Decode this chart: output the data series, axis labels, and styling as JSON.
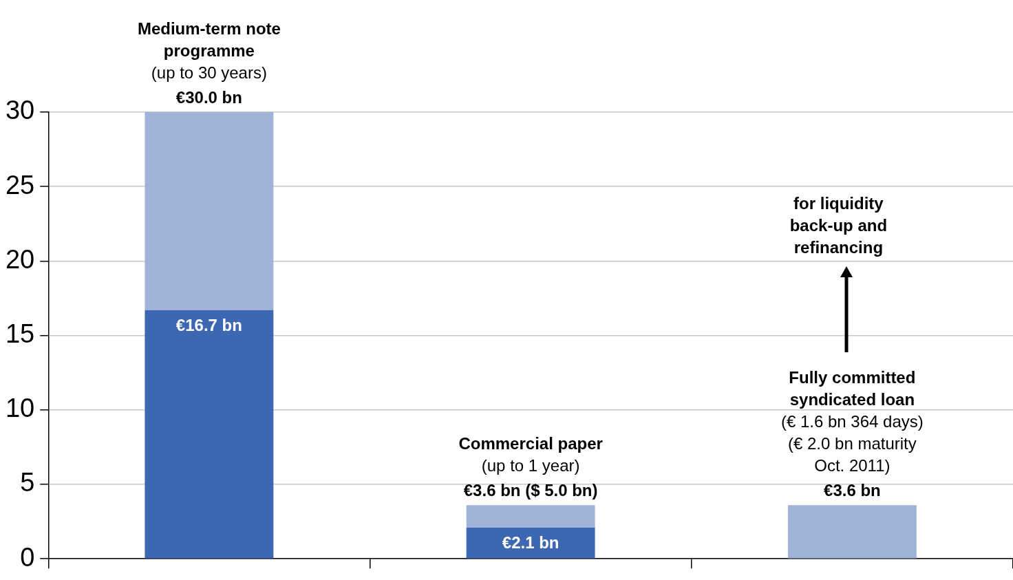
{
  "chart_data": {
    "type": "bar",
    "stacked": true,
    "categories": [
      null,
      null,
      null
    ],
    "series": [
      {
        "color": "#3e67b1",
        "values": [
          16.7,
          2.1,
          0
        ],
        "value_labels": [
          "€16.7 bn",
          "€2.1 bn",
          null
        ]
      },
      {
        "color": "#a0b3d9",
        "values": [
          13.3,
          1.5,
          3.6
        ]
      }
    ],
    "totals": [
      "€30.0 bn",
      "€3.6 bn ($ 5.0 bn)",
      "€3.6 bn"
    ],
    "annotations": [
      "Medium-term note\nprogramme\n(up to 30 years)",
      "Commercial paper\n(up to 1 year)",
      "Fully committed\nsyndicated loan\n(€ 1.6 bn 364 days)\n(€ 2.0 bn maturity\nOct. 2011)",
      "for liquidity\nback-up and\nrefinancing"
    ],
    "ylim": [
      0,
      30
    ],
    "yticks": [
      0,
      5,
      10,
      15,
      20,
      25,
      30
    ],
    "grid": "y",
    "tick_labels": "y",
    "legend": false
  }
}
